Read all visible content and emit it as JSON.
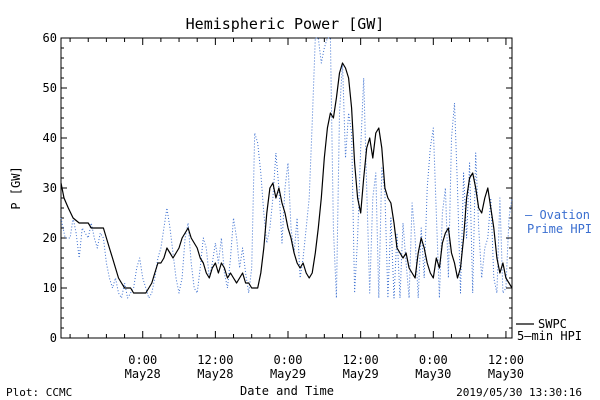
{
  "chart_data": {
    "type": "line",
    "title": "Hemispheric Power [GW]",
    "xlabel": "Date and Time",
    "ylabel": "P [GW]",
    "ylim": [
      0,
      60
    ],
    "y_ticks": [
      0,
      10,
      20,
      30,
      40,
      50,
      60
    ],
    "xlim_hours": [
      -13.5,
      61.0
    ],
    "x_ticks": [
      {
        "hour": 0,
        "time": "0:00",
        "date": "May28"
      },
      {
        "hour": 12,
        "time": "12:00",
        "date": "May28"
      },
      {
        "hour": 24,
        "time": "0:00",
        "date": "May29"
      },
      {
        "hour": 36,
        "time": "12:00",
        "date": "May29"
      },
      {
        "hour": 48,
        "time": "0:00",
        "date": "May30"
      },
      {
        "hour": 60,
        "time": "12:00",
        "date": "May30"
      }
    ],
    "grid": false,
    "series": [
      {
        "name": "Ovation Prime HPI",
        "legend": [
          "– Ovation",
          "Prime HPI"
        ],
        "color": "#3b6fd0",
        "style": "dotted",
        "points": [
          [
            -13.5,
            24
          ],
          [
            -12.8,
            20
          ],
          [
            -12.0,
            20
          ],
          [
            -11.5,
            24
          ],
          [
            -11.0,
            21
          ],
          [
            -10.5,
            16
          ],
          [
            -10.0,
            22
          ],
          [
            -9.5,
            21
          ],
          [
            -9.0,
            20
          ],
          [
            -8.5,
            23
          ],
          [
            -8.0,
            20
          ],
          [
            -7.5,
            18
          ],
          [
            -7.0,
            21
          ],
          [
            -6.5,
            20
          ],
          [
            -6.0,
            15
          ],
          [
            -5.5,
            12
          ],
          [
            -5.0,
            10
          ],
          [
            -4.5,
            12
          ],
          [
            -4.0,
            9
          ],
          [
            -3.5,
            8
          ],
          [
            -3.0,
            11
          ],
          [
            -2.5,
            8
          ],
          [
            -2.0,
            9
          ],
          [
            -1.5,
            10
          ],
          [
            -1.0,
            14
          ],
          [
            -0.5,
            16
          ],
          [
            0.0,
            12
          ],
          [
            0.5,
            10
          ],
          [
            1.0,
            8
          ],
          [
            1.5,
            9
          ],
          [
            2.0,
            12
          ],
          [
            2.5,
            16
          ],
          [
            3.0,
            18
          ],
          [
            3.5,
            22
          ],
          [
            4.0,
            26
          ],
          [
            4.5,
            22
          ],
          [
            5.0,
            17
          ],
          [
            5.5,
            12
          ],
          [
            6.0,
            9
          ],
          [
            6.5,
            12
          ],
          [
            7.0,
            20
          ],
          [
            7.5,
            23
          ],
          [
            8.0,
            15
          ],
          [
            8.5,
            10
          ],
          [
            9.0,
            9
          ],
          [
            9.5,
            14
          ],
          [
            10.0,
            20
          ],
          [
            10.5,
            18
          ],
          [
            11.0,
            12
          ],
          [
            11.5,
            15
          ],
          [
            12.0,
            19
          ],
          [
            12.5,
            15
          ],
          [
            13.0,
            20
          ],
          [
            13.5,
            13
          ],
          [
            14.0,
            10
          ],
          [
            14.5,
            16
          ],
          [
            15.0,
            24
          ],
          [
            15.5,
            20
          ],
          [
            16.0,
            14
          ],
          [
            16.5,
            18
          ],
          [
            17.0,
            13
          ],
          [
            17.5,
            9
          ],
          [
            18.0,
            14
          ],
          [
            18.5,
            41
          ],
          [
            19.0,
            39
          ],
          [
            19.5,
            33
          ],
          [
            20.0,
            25
          ],
          [
            20.5,
            19
          ],
          [
            21.0,
            22
          ],
          [
            21.5,
            28
          ],
          [
            22.0,
            37
          ],
          [
            22.5,
            30
          ],
          [
            23.0,
            19
          ],
          [
            23.5,
            30
          ],
          [
            24.0,
            35
          ],
          [
            24.5,
            22
          ],
          [
            25.0,
            17
          ],
          [
            25.5,
            24
          ],
          [
            26.0,
            12
          ],
          [
            26.5,
            16
          ],
          [
            27.0,
            22
          ],
          [
            27.5,
            28
          ],
          [
            28.0,
            43
          ],
          [
            28.5,
            61
          ],
          [
            29.0,
            60
          ],
          [
            29.5,
            55
          ],
          [
            30.0,
            58
          ],
          [
            30.5,
            61
          ],
          [
            31.0,
            60
          ],
          [
            31.5,
            22
          ],
          [
            32.0,
            8
          ],
          [
            32.5,
            45
          ],
          [
            33.0,
            55
          ],
          [
            33.5,
            36
          ],
          [
            34.0,
            45
          ],
          [
            34.5,
            41
          ],
          [
            35.0,
            9
          ],
          [
            35.5,
            20
          ],
          [
            36.0,
            38
          ],
          [
            36.5,
            52
          ],
          [
            37.0,
            30
          ],
          [
            37.5,
            9
          ],
          [
            38.0,
            28
          ],
          [
            38.5,
            33
          ],
          [
            39.0,
            8
          ],
          [
            39.5,
            34
          ],
          [
            40.0,
            29
          ],
          [
            40.5,
            8
          ],
          [
            41.0,
            24
          ],
          [
            41.5,
            8
          ],
          [
            42.0,
            21
          ],
          [
            42.5,
            8
          ],
          [
            43.0,
            23
          ],
          [
            43.5,
            15
          ],
          [
            44.0,
            8
          ],
          [
            44.5,
            27
          ],
          [
            45.0,
            20
          ],
          [
            45.5,
            8
          ],
          [
            46.0,
            22
          ],
          [
            46.5,
            12
          ],
          [
            47.0,
            30
          ],
          [
            47.5,
            38
          ],
          [
            48.0,
            42
          ],
          [
            48.5,
            25
          ],
          [
            49.0,
            8
          ],
          [
            49.5,
            25
          ],
          [
            50.0,
            30
          ],
          [
            50.5,
            12
          ],
          [
            51.0,
            40
          ],
          [
            51.5,
            47
          ],
          [
            52.0,
            30
          ],
          [
            52.5,
            9
          ],
          [
            53.0,
            33
          ],
          [
            53.5,
            20
          ],
          [
            54.0,
            35
          ],
          [
            54.5,
            9
          ],
          [
            55.0,
            37
          ],
          [
            55.5,
            22
          ],
          [
            56.0,
            12
          ],
          [
            56.5,
            18
          ],
          [
            57.0,
            20
          ],
          [
            57.5,
            28
          ],
          [
            58.0,
            12
          ],
          [
            58.5,
            9
          ],
          [
            59.0,
            28
          ],
          [
            59.5,
            9
          ],
          [
            60.0,
            10
          ],
          [
            60.5,
            24
          ],
          [
            61.0,
            28
          ]
        ]
      },
      {
        "name": "SWPC 5-min HPI",
        "legend": [
          "SWPC",
          "5–min HPI"
        ],
        "color": "#000000",
        "style": "solid",
        "points": [
          [
            -13.5,
            31
          ],
          [
            -13.0,
            28
          ],
          [
            -12.3,
            26
          ],
          [
            -11.5,
            24
          ],
          [
            -10.5,
            23
          ],
          [
            -9.0,
            23
          ],
          [
            -8.5,
            22
          ],
          [
            -7.5,
            22
          ],
          [
            -6.5,
            22
          ],
          [
            -6.0,
            20
          ],
          [
            -5.5,
            18
          ],
          [
            -5.0,
            16
          ],
          [
            -4.5,
            14
          ],
          [
            -4.0,
            12
          ],
          [
            -3.5,
            11
          ],
          [
            -3.0,
            10
          ],
          [
            -2.5,
            10
          ],
          [
            -2.0,
            10
          ],
          [
            -1.5,
            9
          ],
          [
            -1.0,
            9
          ],
          [
            0.0,
            9
          ],
          [
            0.5,
            9
          ],
          [
            1.0,
            10
          ],
          [
            1.5,
            11
          ],
          [
            2.0,
            13
          ],
          [
            2.5,
            15
          ],
          [
            3.0,
            15
          ],
          [
            3.5,
            16
          ],
          [
            4.0,
            18
          ],
          [
            4.5,
            17
          ],
          [
            5.0,
            16
          ],
          [
            5.5,
            17
          ],
          [
            6.0,
            18
          ],
          [
            6.5,
            20
          ],
          [
            7.0,
            21
          ],
          [
            7.5,
            22
          ],
          [
            8.0,
            20
          ],
          [
            8.5,
            19
          ],
          [
            9.0,
            18
          ],
          [
            9.5,
            16
          ],
          [
            10.0,
            15
          ],
          [
            10.5,
            13
          ],
          [
            11.0,
            12
          ],
          [
            11.5,
            14
          ],
          [
            12.0,
            15
          ],
          [
            12.5,
            13
          ],
          [
            13.0,
            15
          ],
          [
            13.5,
            14
          ],
          [
            14.0,
            12
          ],
          [
            14.5,
            13
          ],
          [
            15.0,
            12
          ],
          [
            15.5,
            11
          ],
          [
            16.0,
            12
          ],
          [
            16.5,
            13
          ],
          [
            17.0,
            11
          ],
          [
            17.5,
            11
          ],
          [
            18.0,
            10
          ],
          [
            18.5,
            10
          ],
          [
            19.0,
            10
          ],
          [
            19.5,
            13
          ],
          [
            20.0,
            18
          ],
          [
            20.5,
            25
          ],
          [
            21.0,
            30
          ],
          [
            21.5,
            31
          ],
          [
            22.0,
            28
          ],
          [
            22.5,
            30
          ],
          [
            23.0,
            27
          ],
          [
            23.5,
            25
          ],
          [
            24.0,
            22
          ],
          [
            24.5,
            20
          ],
          [
            25.0,
            17
          ],
          [
            25.5,
            15
          ],
          [
            26.0,
            14
          ],
          [
            26.5,
            15
          ],
          [
            27.0,
            13
          ],
          [
            27.5,
            12
          ],
          [
            28.0,
            13
          ],
          [
            28.5,
            17
          ],
          [
            29.0,
            22
          ],
          [
            29.5,
            28
          ],
          [
            30.0,
            36
          ],
          [
            30.5,
            42
          ],
          [
            31.0,
            45
          ],
          [
            31.5,
            44
          ],
          [
            32.0,
            48
          ],
          [
            32.5,
            53
          ],
          [
            33.0,
            55
          ],
          [
            33.5,
            54
          ],
          [
            34.0,
            52
          ],
          [
            34.5,
            46
          ],
          [
            35.0,
            35
          ],
          [
            35.5,
            28
          ],
          [
            36.0,
            25
          ],
          [
            36.5,
            32
          ],
          [
            37.0,
            38
          ],
          [
            37.5,
            40
          ],
          [
            38.0,
            36
          ],
          [
            38.5,
            41
          ],
          [
            39.0,
            42
          ],
          [
            39.5,
            38
          ],
          [
            40.0,
            30
          ],
          [
            40.5,
            28
          ],
          [
            41.0,
            27
          ],
          [
            41.5,
            23
          ],
          [
            42.0,
            18
          ],
          [
            42.5,
            17
          ],
          [
            43.0,
            16
          ],
          [
            43.5,
            17
          ],
          [
            44.0,
            14
          ],
          [
            44.5,
            13
          ],
          [
            45.0,
            12
          ],
          [
            45.5,
            17
          ],
          [
            46.0,
            20
          ],
          [
            46.5,
            18
          ],
          [
            47.0,
            15
          ],
          [
            47.5,
            13
          ],
          [
            48.0,
            12
          ],
          [
            48.5,
            16
          ],
          [
            49.0,
            14
          ],
          [
            49.5,
            19
          ],
          [
            50.0,
            21
          ],
          [
            50.5,
            22
          ],
          [
            51.0,
            17
          ],
          [
            51.5,
            15
          ],
          [
            52.0,
            12
          ],
          [
            52.5,
            14
          ],
          [
            53.0,
            20
          ],
          [
            53.5,
            28
          ],
          [
            54.0,
            32
          ],
          [
            54.5,
            33
          ],
          [
            55.0,
            30
          ],
          [
            55.5,
            26
          ],
          [
            56.0,
            25
          ],
          [
            56.5,
            28
          ],
          [
            57.0,
            30
          ],
          [
            57.5,
            26
          ],
          [
            58.0,
            22
          ],
          [
            58.5,
            16
          ],
          [
            59.0,
            13
          ],
          [
            59.5,
            15
          ],
          [
            60.0,
            12
          ],
          [
            60.5,
            11
          ],
          [
            61.0,
            10
          ]
        ]
      }
    ]
  },
  "footer": {
    "left": "Plot: CCMC",
    "right": "2019/05/30 13:30:16"
  }
}
